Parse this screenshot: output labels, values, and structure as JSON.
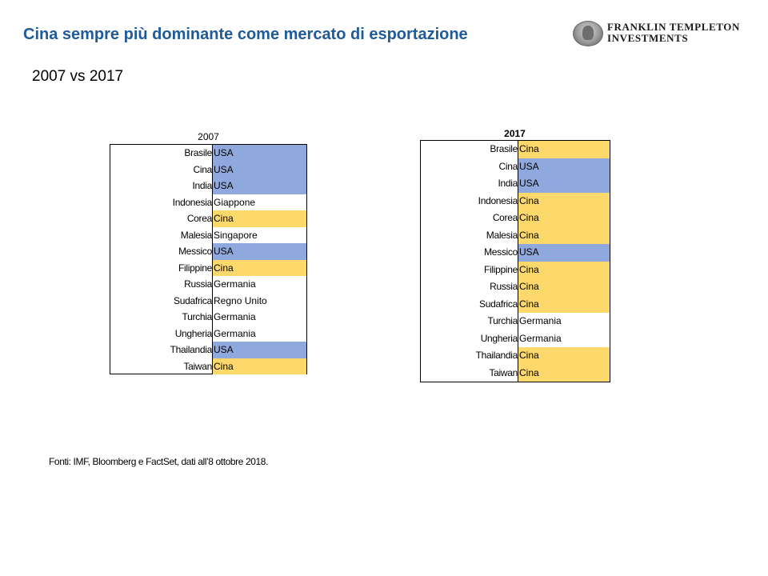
{
  "header": {
    "title": "Cina sempre più dominante come mercato di esportazione",
    "subtitle": "2007 vs 2017",
    "logo_line1": "FRANKLIN TEMPLETON",
    "logo_line2": "INVESTMENTS"
  },
  "colors": {
    "USA": "#8fa9de",
    "Cina": "#fdd86b",
    "other": "#ffffff",
    "title": "#1f5a99"
  },
  "tables": [
    {
      "title": "2007",
      "rows": [
        {
          "country": "Brasile",
          "dest": "USA"
        },
        {
          "country": "Cina",
          "dest": "USA"
        },
        {
          "country": "India",
          "dest": "USA"
        },
        {
          "country": "Indonesia",
          "dest": "Giappone"
        },
        {
          "country": "Corea",
          "dest": "Cina"
        },
        {
          "country": "Malesia",
          "dest": "Singapore"
        },
        {
          "country": "Messico",
          "dest": "USA"
        },
        {
          "country": "Filippine",
          "dest": "Cina"
        },
        {
          "country": "Russia",
          "dest": "Germania"
        },
        {
          "country": "Sudafrica",
          "dest": "Regno Unito"
        },
        {
          "country": "Turchia",
          "dest": "Germania"
        },
        {
          "country": "Ungheria",
          "dest": "Germania"
        },
        {
          "country": "Thailandia",
          "dest": "USA"
        },
        {
          "country": "Taiwan",
          "dest": "Cina"
        }
      ]
    },
    {
      "title": "2017",
      "rows": [
        {
          "country": "Brasile",
          "dest": "Cina"
        },
        {
          "country": "Cina",
          "dest": "USA"
        },
        {
          "country": "India",
          "dest": "USA"
        },
        {
          "country": "Indonesia",
          "dest": "Cina"
        },
        {
          "country": "Corea",
          "dest": "Cina"
        },
        {
          "country": "Malesia",
          "dest": "Cina"
        },
        {
          "country": "Messico",
          "dest": "USA"
        },
        {
          "country": "Filippine",
          "dest": "Cina"
        },
        {
          "country": "Russia",
          "dest": "Cina"
        },
        {
          "country": "Sudafrica",
          "dest": "Cina"
        },
        {
          "country": "Turchia",
          "dest": "Germania"
        },
        {
          "country": "Ungheria",
          "dest": "Germania"
        },
        {
          "country": "Thailandia",
          "dest": "Cina"
        },
        {
          "country": "Taiwan",
          "dest": "Cina"
        }
      ]
    }
  ],
  "footer": {
    "source": "Fonti: IMF, Bloomberg e FactSet, dati all’8 ottobre 2018."
  }
}
